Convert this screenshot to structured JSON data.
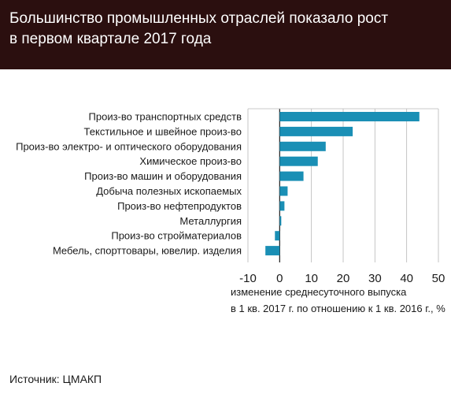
{
  "header": {
    "title_line1": "Большинство промышленных отраслей показало рост",
    "title_line2": "в первом квартале 2017 года"
  },
  "source": "Источник: ЦМАКП",
  "colors": {
    "header_bg": "#2b0f0f",
    "bar": "#1a8fb5",
    "grid": "#b8b8b8",
    "axis": "#1a1a1a"
  },
  "chart_data": {
    "type": "bar",
    "orientation": "horizontal",
    "title": "",
    "categories": [
      "Произ-во транспортных средств",
      "Текстильное и швейное произ-во",
      "Произ-во электро- и оптического оборудования",
      "Химическое произ-во",
      "Произ-во машин и оборудования",
      "Добыча полезных ископаемых",
      "Произ-во нефтепродуктов",
      "Металлургия",
      "Произ-во стройматериалов",
      "Мебель, спорттовары, ювелир. изделия"
    ],
    "values": [
      44,
      23,
      14.5,
      12,
      7.5,
      2.5,
      1.5,
      0.5,
      -1.5,
      -4.5
    ],
    "xlim": [
      -10,
      50
    ],
    "xticks": [
      "-10",
      "0",
      "10",
      "20",
      "30",
      "40",
      "50"
    ],
    "xlabel_line1": "изменение среднесуточного выпуска",
    "xlabel_line2": "в 1 кв. 2017 г. по отношению к 1 кв. 2016 г., %",
    "grid": true
  }
}
